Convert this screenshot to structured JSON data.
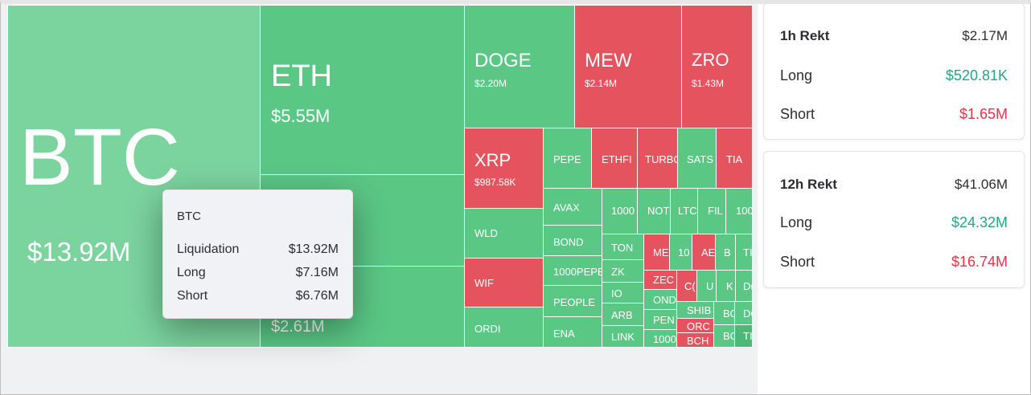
{
  "heatmap": {
    "tiles": {
      "btc": {
        "symbol": "BTC",
        "value": "$13.92M"
      },
      "eth": {
        "symbol": "ETH",
        "value": "$5.55M"
      },
      "eth_lower_value": "$2.61M",
      "doge": {
        "symbol": "DOGE",
        "value": "$2.20M"
      },
      "mew": {
        "symbol": "MEW",
        "value": "$2.14M"
      },
      "zro": {
        "symbol": "ZRO",
        "value": "$1.43M"
      },
      "xrp": {
        "symbol": "XRP",
        "value": "$987.58K"
      },
      "wld": "WLD",
      "wif": "WIF",
      "ordi": "ORDI",
      "pepe": "PEPE",
      "ethfi": "ETHFI",
      "turbo": "TURBO",
      "sats": "SATS",
      "tia": "TIA",
      "avax": "AVAX",
      "bond": "BOND",
      "thousand_pepe": "1000PEPE",
      "people": "PEOPLE",
      "ena": "ENA",
      "thousand": "1000",
      "not": "NOT",
      "ltc": "LTC",
      "fil": "FIL",
      "hundred": "100",
      "ton": "TON",
      "zk": "ZK",
      "io": "IO",
      "arb": "ARB",
      "link": "LINK",
      "me": "ME",
      "ten": "10",
      "ae": "AE",
      "b": "B",
      "tr": "TI",
      "zec": "ZEC",
      "ond": "OND",
      "pen": "PEN",
      "thousand_b": "1000",
      "cc": "C(",
      "u": "U",
      "k": "K",
      "d": "D(",
      "shib": "SHIB",
      "orc": "ORC",
      "bch": "BCH",
      "bo": "BO",
      "do": "DO",
      "bo2": "BO",
      "tl": "TI"
    }
  },
  "tooltip": {
    "title": "BTC",
    "rows": [
      {
        "label": "Liquidation",
        "value": "$13.92M"
      },
      {
        "label": "Long",
        "value": "$7.16M"
      },
      {
        "label": "Short",
        "value": "$6.76M"
      }
    ]
  },
  "rekt_1h": {
    "title": "1h Rekt",
    "total": "$2.17M",
    "long_label": "Long",
    "long_value": "$520.81K",
    "short_label": "Short",
    "short_value": "$1.65M"
  },
  "rekt_12h": {
    "title": "12h Rekt",
    "total": "$41.06M",
    "long_label": "Long",
    "long_value": "$24.32M",
    "short_label": "Short",
    "short_value": "$16.74M"
  },
  "colors": {
    "long": "#1fa882",
    "short": "#e5344a",
    "tile_green": "#5ac785",
    "tile_red": "#e5535f"
  }
}
